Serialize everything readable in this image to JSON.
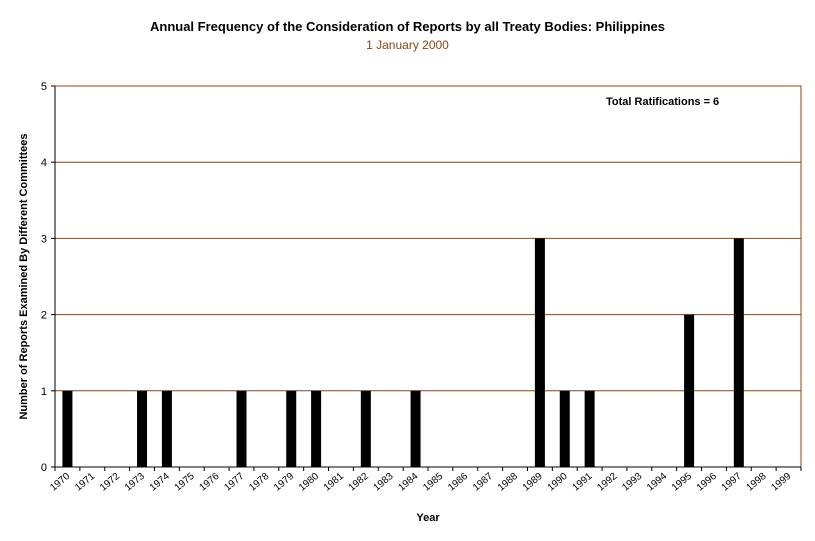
{
  "colors": {
    "title": "#000000",
    "subtitle": "#8B4513",
    "gridline": "#8B4513",
    "plot_border": "#8B4513",
    "plot_background": "#ffffff",
    "bar": "#000000"
  },
  "chart_data": {
    "type": "bar",
    "title": "Annual Frequency of the Consideration of Reports by all Treaty Bodies: Philippines",
    "subtitle": "1 January 2000",
    "xlabel": "Year",
    "ylabel": "Number of Reports Examined By Different Committees",
    "ylim": [
      0,
      5
    ],
    "yticks": [
      "0",
      "1",
      "2",
      "3",
      "4",
      "5"
    ],
    "grid": true,
    "annotation": "Total Ratifications = 6",
    "categories": [
      "1970",
      "1971",
      "1972",
      "1973",
      "1974",
      "1975",
      "1976",
      "1977",
      "1978",
      "1979",
      "1980",
      "1981",
      "1982",
      "1983",
      "1984",
      "1985",
      "1986",
      "1987",
      "1988",
      "1989",
      "1990",
      "1991",
      "1992",
      "1993",
      "1994",
      "1995",
      "1996",
      "1997",
      "1998",
      "1999"
    ],
    "tick_labels": [
      "1970",
      "1971",
      "1972",
      "1973",
      "1974",
      "1975",
      "1976",
      "1977",
      "1978",
      "1979",
      "1980",
      "1981",
      "1982",
      "1983",
      "1984",
      "1985",
      "1986",
      "1987",
      "1988",
      "1989",
      "1990",
      "1991",
      "1992",
      "1993",
      "1994",
      "1995",
      "1996",
      "1997",
      "1998",
      "1999"
    ],
    "values": [
      1,
      0,
      0,
      1,
      1,
      0,
      0,
      1,
      0,
      1,
      1,
      0,
      1,
      0,
      1,
      0,
      0,
      0,
      0,
      3,
      1,
      1,
      0,
      0,
      0,
      2,
      0,
      3,
      0,
      0
    ]
  }
}
